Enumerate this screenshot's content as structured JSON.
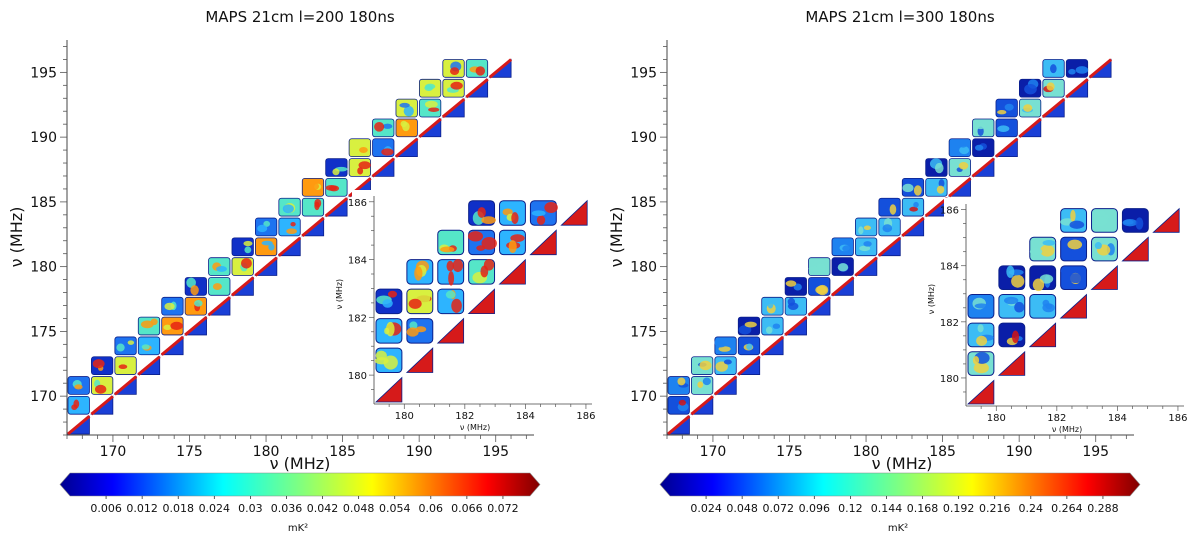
{
  "chart_data": [
    {
      "type": "heatmap",
      "title": "MAPS 21cm l=200 180ns",
      "xlabel": "ν (MHz)",
      "ylabel": "ν (MHz)",
      "xlim": [
        167,
        197.5
      ],
      "ylim": [
        167,
        197.5
      ],
      "x_ticks": [
        "170",
        "175",
        "180",
        "185",
        "190",
        "195"
      ],
      "y_ticks": [
        "170",
        "175",
        "180",
        "185",
        "190",
        "195"
      ],
      "x_tick_values": [
        170,
        175,
        180,
        185,
        190,
        195
      ],
      "y_tick_values": [
        170,
        175,
        180,
        185,
        190,
        195
      ],
      "block_size_mhz": 1.53,
      "blocks_across_diagonal": 3,
      "colorbar": {
        "label": "mK²",
        "ticks": [
          "0.006",
          "0.012",
          "0.018",
          "0.024",
          "0.03",
          "0.036",
          "0.042",
          "0.048",
          "0.054",
          "0.06",
          "0.066",
          "0.072"
        ],
        "tick_values": [
          0.006,
          0.012,
          0.018,
          0.024,
          0.03,
          0.036,
          0.042,
          0.048,
          0.054,
          0.06,
          0.066,
          0.072
        ],
        "range": [
          0,
          0.0765
        ],
        "extend": "both"
      },
      "inset": {
        "xlabel": "ν (MHz)",
        "ylabel": "ν (MHz)",
        "xlim": [
          179,
          186.2
        ],
        "ylim": [
          179,
          186.2
        ],
        "x_ticks": [
          "180",
          "182",
          "184",
          "186"
        ],
        "y_ticks": [
          "180",
          "182",
          "184",
          "186"
        ],
        "x_tick_values": [
          180,
          182,
          184,
          186
        ],
        "y_tick_values": [
          180,
          182,
          184,
          186
        ]
      },
      "block_colors": [
        "#1030c8",
        "#1e73f0",
        "#2db4ff",
        "#55e6c8",
        "#d8f040",
        "#ff9a10",
        "#e62314"
      ]
    },
    {
      "type": "heatmap",
      "title": "MAPS 21cm l=300 180ns",
      "xlabel": "ν (MHz)",
      "ylabel": "ν (MHz)",
      "xlim": [
        167,
        197.5
      ],
      "ylim": [
        167,
        197.5
      ],
      "x_ticks": [
        "170",
        "175",
        "180",
        "185",
        "190",
        "195"
      ],
      "y_ticks": [
        "170",
        "175",
        "180",
        "185",
        "190",
        "195"
      ],
      "x_tick_values": [
        170,
        175,
        180,
        185,
        190,
        195
      ],
      "y_tick_values": [
        170,
        175,
        180,
        185,
        190,
        195
      ],
      "block_size_mhz": 1.53,
      "blocks_across_diagonal": 3,
      "colorbar": {
        "label": "mK²",
        "ticks": [
          "0.024",
          "0.048",
          "0.072",
          "0.096",
          "0.12",
          "0.144",
          "0.168",
          "0.192",
          "0.216",
          "0.24",
          "0.264",
          "0.288"
        ],
        "tick_values": [
          0.024,
          0.048,
          0.072,
          0.096,
          0.12,
          0.144,
          0.168,
          0.192,
          0.216,
          0.24,
          0.264,
          0.288
        ],
        "range": [
          0,
          0.306
        ],
        "extend": "both"
      },
      "inset": {
        "xlabel": "ν (MHz)",
        "ylabel": "ν (MHz)",
        "xlim": [
          179,
          186.2
        ],
        "ylim": [
          179,
          186.2
        ],
        "x_ticks": [
          "180",
          "182",
          "184",
          "186"
        ],
        "y_ticks": [
          "180",
          "182",
          "184",
          "186"
        ],
        "x_tick_values": [
          180,
          182,
          184,
          186
        ],
        "y_tick_values": [
          180,
          182,
          184,
          186
        ]
      },
      "block_colors": [
        "#0a1ea8",
        "#1450dc",
        "#1e82f0",
        "#3cbcf5",
        "#78e0d2",
        "#f0d040",
        "#d21414"
      ]
    }
  ]
}
